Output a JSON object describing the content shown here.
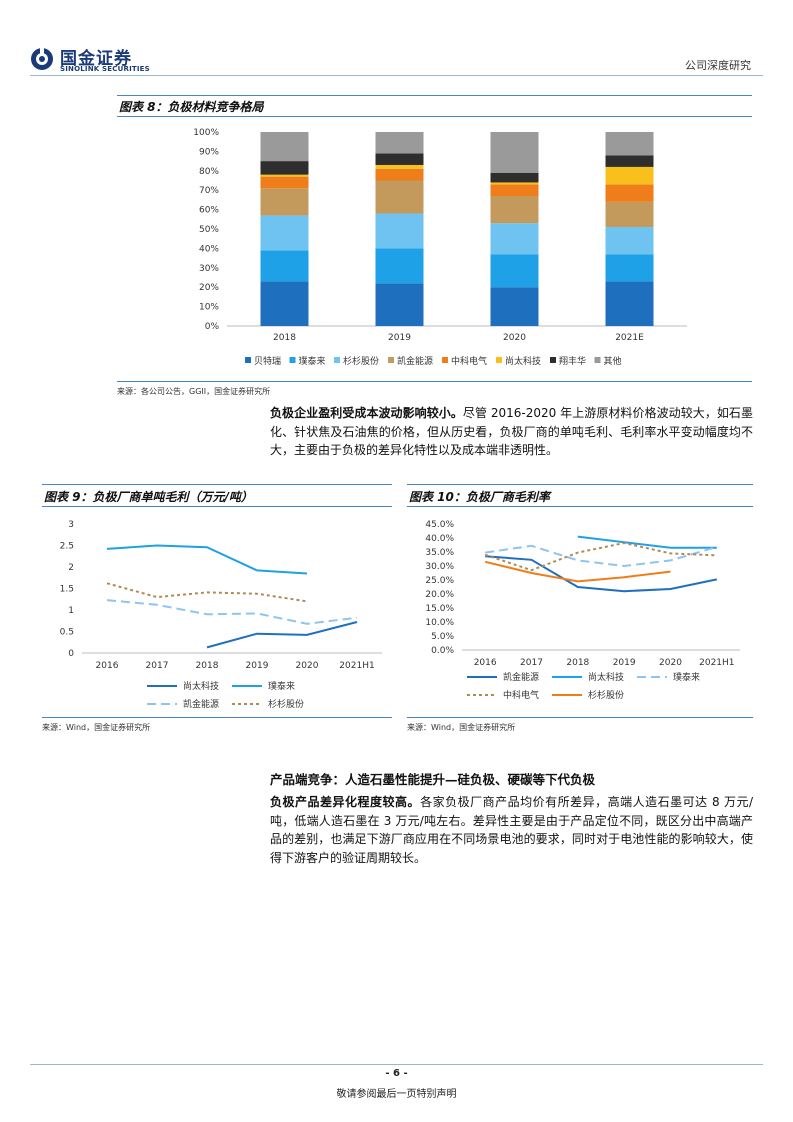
{
  "header": {
    "logo_zh": "国金证券",
    "logo_en": "SINOLINK SECURITIES",
    "report_type": "公司深度研究"
  },
  "fig8": {
    "title": "图表 8：负极材料竞争格局",
    "source": "来源：各公司公告，GGII，国金证券研究所",
    "chart_data": {
      "type": "bar",
      "stacked": true,
      "categories": [
        "2018",
        "2019",
        "2020",
        "2021E"
      ],
      "y_ticks": [
        "0%",
        "10%",
        "20%",
        "30%",
        "40%",
        "50%",
        "60%",
        "70%",
        "80%",
        "90%",
        "100%"
      ],
      "ylim": [
        0,
        100
      ],
      "series": [
        {
          "name": "贝特瑞",
          "color": "#1f6fbf",
          "values": [
            23,
            22,
            20,
            23
          ]
        },
        {
          "name": "璞泰来",
          "color": "#1ea1e6",
          "values": [
            16,
            18,
            17,
            14
          ]
        },
        {
          "name": "杉杉股份",
          "color": "#6fc3f0",
          "values": [
            18,
            18,
            16,
            14
          ]
        },
        {
          "name": "凯金能源",
          "color": "#c49a5c",
          "values": [
            14,
            17,
            14,
            13
          ]
        },
        {
          "name": "中科电气",
          "color": "#ef7d1a",
          "values": [
            6,
            6,
            6,
            9
          ]
        },
        {
          "name": "尚太科技",
          "color": "#f9c01d",
          "values": [
            1,
            2,
            1,
            9
          ]
        },
        {
          "name": "翔丰华",
          "color": "#2e2e2e",
          "values": [
            7,
            6,
            5,
            6
          ]
        },
        {
          "name": "其他",
          "color": "#9a9a9a",
          "values": [
            15,
            11,
            21,
            12
          ]
        }
      ]
    }
  },
  "para1": {
    "bold": "负极企业盈利受成本波动影响较小。",
    "text": "尽管 2016-2020 年上游原材料价格波动较大，如石墨化、针状焦及石油焦的价格，但从历史看，负极厂商的单吨毛利、毛利率水平变动幅度均不大，主要由于负极的差异化特性以及成本端非透明性。"
  },
  "fig9": {
    "title": "图表 9：负极厂商单吨毛利（万元/吨）",
    "source": "来源：Wind，国金证券研究所",
    "chart_data": {
      "type": "line",
      "categories": [
        "2016",
        "2017",
        "2018",
        "2019",
        "2020",
        "2021H1"
      ],
      "y_ticks": [
        "0",
        "0.5",
        "1",
        "1.5",
        "2",
        "2.5",
        "3"
      ],
      "ylim": [
        0,
        3
      ],
      "series": [
        {
          "name": "尚太科技",
          "color": "#1f6fbf",
          "dash": "solid",
          "values": [
            null,
            null,
            0.13,
            0.45,
            0.42,
            0.72
          ]
        },
        {
          "name": "璞泰来",
          "color": "#1ea1e6",
          "dash": "solid",
          "values": [
            2.42,
            2.5,
            2.46,
            1.92,
            1.85,
            null
          ]
        },
        {
          "name": "凯金能源",
          "color": "#8fc4ee",
          "dash": "long",
          "values": [
            1.23,
            1.12,
            0.9,
            0.92,
            0.68,
            0.82
          ]
        },
        {
          "name": "杉杉股份",
          "color": "#b08a55",
          "dash": "short",
          "values": [
            1.62,
            1.3,
            1.41,
            1.38,
            1.2,
            null
          ]
        }
      ]
    }
  },
  "fig10": {
    "title": "图表 10：负极厂商毛利率",
    "source": "来源：Wind，国金证券研究所",
    "chart_data": {
      "type": "line",
      "categories": [
        "2016",
        "2017",
        "2018",
        "2019",
        "2020",
        "2021H1"
      ],
      "y_ticks": [
        "0.0%",
        "5.0%",
        "10.0%",
        "15.0%",
        "20.0%",
        "25.0%",
        "30.0%",
        "35.0%",
        "40.0%",
        "45.0%"
      ],
      "ylim": [
        0,
        45
      ],
      "series": [
        {
          "name": "凯金能源",
          "color": "#1f6fbf",
          "dash": "solid",
          "values": [
            33.5,
            32.2,
            22.5,
            21.0,
            21.8,
            25.2
          ]
        },
        {
          "name": "尚太科技",
          "color": "#1ea1e6",
          "dash": "solid",
          "values": [
            null,
            null,
            40.5,
            38.5,
            36.5,
            36.5
          ]
        },
        {
          "name": "璞泰来",
          "color": "#8fc4ee",
          "dash": "long",
          "values": [
            34.8,
            37.2,
            32.0,
            30.0,
            32.0,
            36.8
          ]
        },
        {
          "name": "中科电气",
          "color": "#b08a55",
          "dash": "short",
          "values": [
            34.0,
            28.5,
            34.8,
            38.2,
            34.5,
            33.8
          ]
        },
        {
          "name": "杉杉股份",
          "color": "#ef7d1a",
          "dash": "solid",
          "values": [
            31.5,
            27.5,
            24.5,
            26.0,
            28.0,
            null
          ]
        }
      ]
    }
  },
  "section": {
    "heading": "产品端竞争：人造石墨性能提升—硅负极、硬碳等下代负极",
    "para_bold": "负极产品差异化程度较高。",
    "para_text": "各家负极厂商产品均价有所差异，高端人造石墨可达 8 万元/吨，低端人造石墨在 3 万元/吨左右。差异性主要是由于产品定位不同，既区分出中高端产品的差别，也满足下游厂商应用在不同场景电池的要求，同时对于电池性能的影响较大，使得下游客户的验证周期较长。"
  },
  "footer": {
    "page": "- 6 -",
    "note": "敬请参阅最后一页特别声明"
  }
}
